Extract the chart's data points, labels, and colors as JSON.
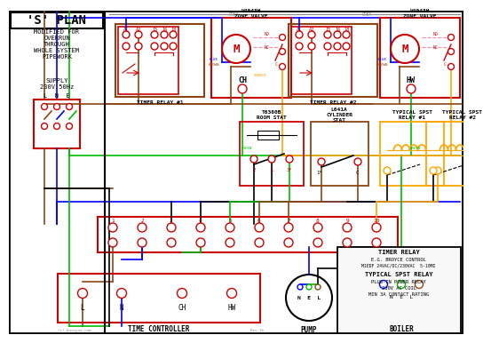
{
  "bg_color": "#ffffff",
  "wire_colors": {
    "blue": "#0000ff",
    "red": "#cc0000",
    "green": "#00bb00",
    "brown": "#8B4513",
    "orange": "#FFA500",
    "black": "#000000",
    "grey": "#888888",
    "pink_dashed": "#ff88aa"
  },
  "title": "'S' PLAN",
  "subtitle": "MODIFIED FOR\nOVERRUN\nTHROUGH\nWHOLE SYSTEM\nPIPEWORK",
  "supply_text": "SUPPLY\n230V 50Hz",
  "lne_text": "L  N  E",
  "timer_relay_1": "TIMER RELAY #1",
  "timer_relay_2": "TIMER RELAY #2",
  "zone_valve_1": "V4043H\nZONE VALVE",
  "zone_valve_2": "V4043H\nZONE VALVE",
  "room_stat_title": "T6360B\nROOM STAT",
  "cyl_stat_title": "L641A\nCYLINDER\nSTAT",
  "spst_relay_1": "TYPICAL SPST\nRELAY #1",
  "spst_relay_2": "TYPICAL SPST\nRELAY #2",
  "time_controller": "TIME CONTROLLER",
  "pump_label": "PUMP",
  "boiler_label": "BOILER",
  "nel_label": "N  E  L",
  "info_line1": "TIMER RELAY",
  "info_line2": "E.G. BROYCE CONTROL",
  "info_line3": "M1EDF 24VAC/DC/230VAC  5-10MI",
  "info_line4": "TYPICAL SPST RELAY",
  "info_line5": "PLUG-IN POWER RELAY",
  "info_line6": "230V AC COIL",
  "info_line7": "MIN 3A CONTACT RATING",
  "ch_label": "CH",
  "hw_label": "HW",
  "orange_label": "ORANGE",
  "blue_label": "BLUE",
  "brown_label": "BROWN",
  "green_label": "GREEN",
  "grey_label1": "GREY",
  "grey_label2": "GREY",
  "terminal_labels": [
    "1",
    "2",
    "3",
    "4",
    "5",
    "6",
    "7",
    "8",
    "9",
    "10"
  ],
  "tc_labels": [
    "L",
    "N",
    "CH",
    "HW"
  ]
}
